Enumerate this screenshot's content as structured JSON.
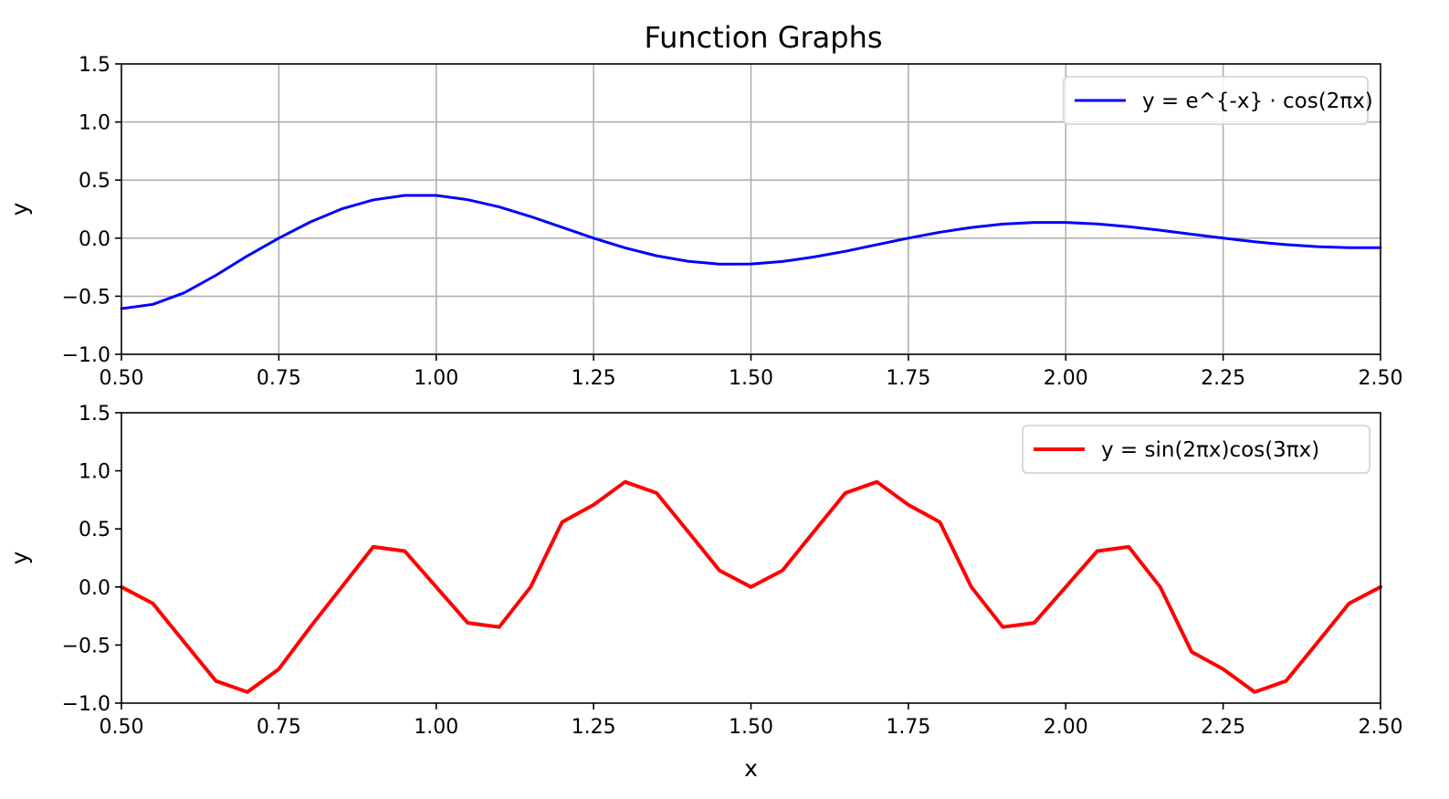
{
  "chart_data": {
    "title": "Function Graphs",
    "panels": [
      {
        "type": "line",
        "xlabel": "",
        "ylabel": "y",
        "xlim": [
          0.5,
          2.5
        ],
        "ylim": [
          -1.0,
          1.5
        ],
        "xticks": [
          0.5,
          0.75,
          1.0,
          1.25,
          1.5,
          1.75,
          2.0,
          2.25,
          2.5
        ],
        "xtick_labels": [
          "0.50",
          "0.75",
          "1.00",
          "1.25",
          "1.50",
          "1.75",
          "2.00",
          "2.25",
          "2.50"
        ],
        "yticks": [
          -1.0,
          -0.5,
          0.0,
          0.5,
          1.0,
          1.5
        ],
        "ytick_labels": [
          "−1.0",
          "−0.5",
          "0.0",
          "0.5",
          "1.0",
          "1.5"
        ],
        "grid": true,
        "legend_position": "upper-right",
        "series": [
          {
            "name": "y = e^{-x} · cos(2πx)",
            "color": "#0000ff",
            "x": [
              0.5,
              0.55,
              0.6,
              0.65,
              0.7,
              0.75,
              0.8,
              0.85,
              0.9,
              0.95,
              1.0,
              1.05,
              1.1,
              1.15,
              1.2,
              1.25,
              1.3,
              1.35,
              1.4,
              1.45,
              1.5,
              1.55,
              1.6,
              1.65,
              1.7,
              1.75,
              1.8,
              1.85,
              1.9,
              1.95,
              2.0,
              2.05,
              2.1,
              2.15,
              2.2,
              2.25,
              2.3,
              2.35,
              2.4,
              2.45,
              2.5
            ],
            "y": [
              -0.607,
              -0.57,
              -0.47,
              -0.32,
              -0.153,
              0.0,
              0.139,
              0.252,
              0.329,
              0.368,
              0.368,
              0.331,
              0.269,
              0.186,
              0.093,
              0.0,
              -0.084,
              -0.152,
              -0.199,
              -0.224,
              -0.223,
              -0.201,
              -0.162,
              -0.113,
              -0.056,
              0.0,
              0.051,
              0.092,
              0.121,
              0.135,
              0.135,
              0.122,
              0.099,
              0.068,
              0.034,
              0.0,
              -0.031,
              -0.056,
              -0.073,
              -0.082,
              -0.082
            ]
          }
        ]
      },
      {
        "type": "line",
        "xlabel": "x",
        "ylabel": "y",
        "xlim": [
          0.5,
          2.5
        ],
        "ylim": [
          -1.0,
          1.5
        ],
        "xticks": [
          0.5,
          0.75,
          1.0,
          1.25,
          1.5,
          1.75,
          2.0,
          2.25,
          2.5
        ],
        "xtick_labels": [
          "0.50",
          "0.75",
          "1.00",
          "1.25",
          "1.50",
          "1.75",
          "2.00",
          "2.25",
          "2.50"
        ],
        "yticks": [
          -1.0,
          -0.5,
          0.0,
          0.5,
          1.0,
          1.5
        ],
        "ytick_labels": [
          "−1.0",
          "−0.5",
          "0.0",
          "0.5",
          "1.0",
          "1.5"
        ],
        "grid": false,
        "legend_position": "upper-right",
        "series": [
          {
            "name": "y = sin(2πx)cos(3πx)",
            "color": "#ff0000",
            "x": [
              0.5,
              0.55,
              0.6,
              0.65,
              0.7,
              0.75,
              0.8,
              0.85,
              0.9,
              0.95,
              1.0,
              1.05,
              1.1,
              1.15,
              1.2,
              1.25,
              1.3,
              1.35,
              1.4,
              1.45,
              1.5,
              1.55,
              1.6,
              1.65,
              1.7,
              1.75,
              1.8,
              1.85,
              1.9,
              1.95,
              2.0,
              2.05,
              2.1,
              2.15,
              2.2,
              2.25,
              2.3,
              2.35,
              2.4,
              2.45,
              2.5
            ],
            "y": [
              0.0,
              -0.142,
              -0.477,
              -0.809,
              -0.905,
              -0.707,
              -0.345,
              0.0,
              0.345,
              0.309,
              0.0,
              -0.309,
              -0.345,
              0.0,
              0.559,
              0.707,
              0.905,
              0.809,
              0.477,
              0.142,
              0.0,
              0.142,
              0.477,
              0.809,
              0.905,
              0.707,
              0.559,
              0.0,
              -0.345,
              -0.309,
              0.0,
              0.309,
              0.345,
              0.0,
              -0.559,
              -0.707,
              -0.905,
              -0.809,
              -0.477,
              -0.142,
              0.0
            ]
          }
        ]
      }
    ]
  }
}
